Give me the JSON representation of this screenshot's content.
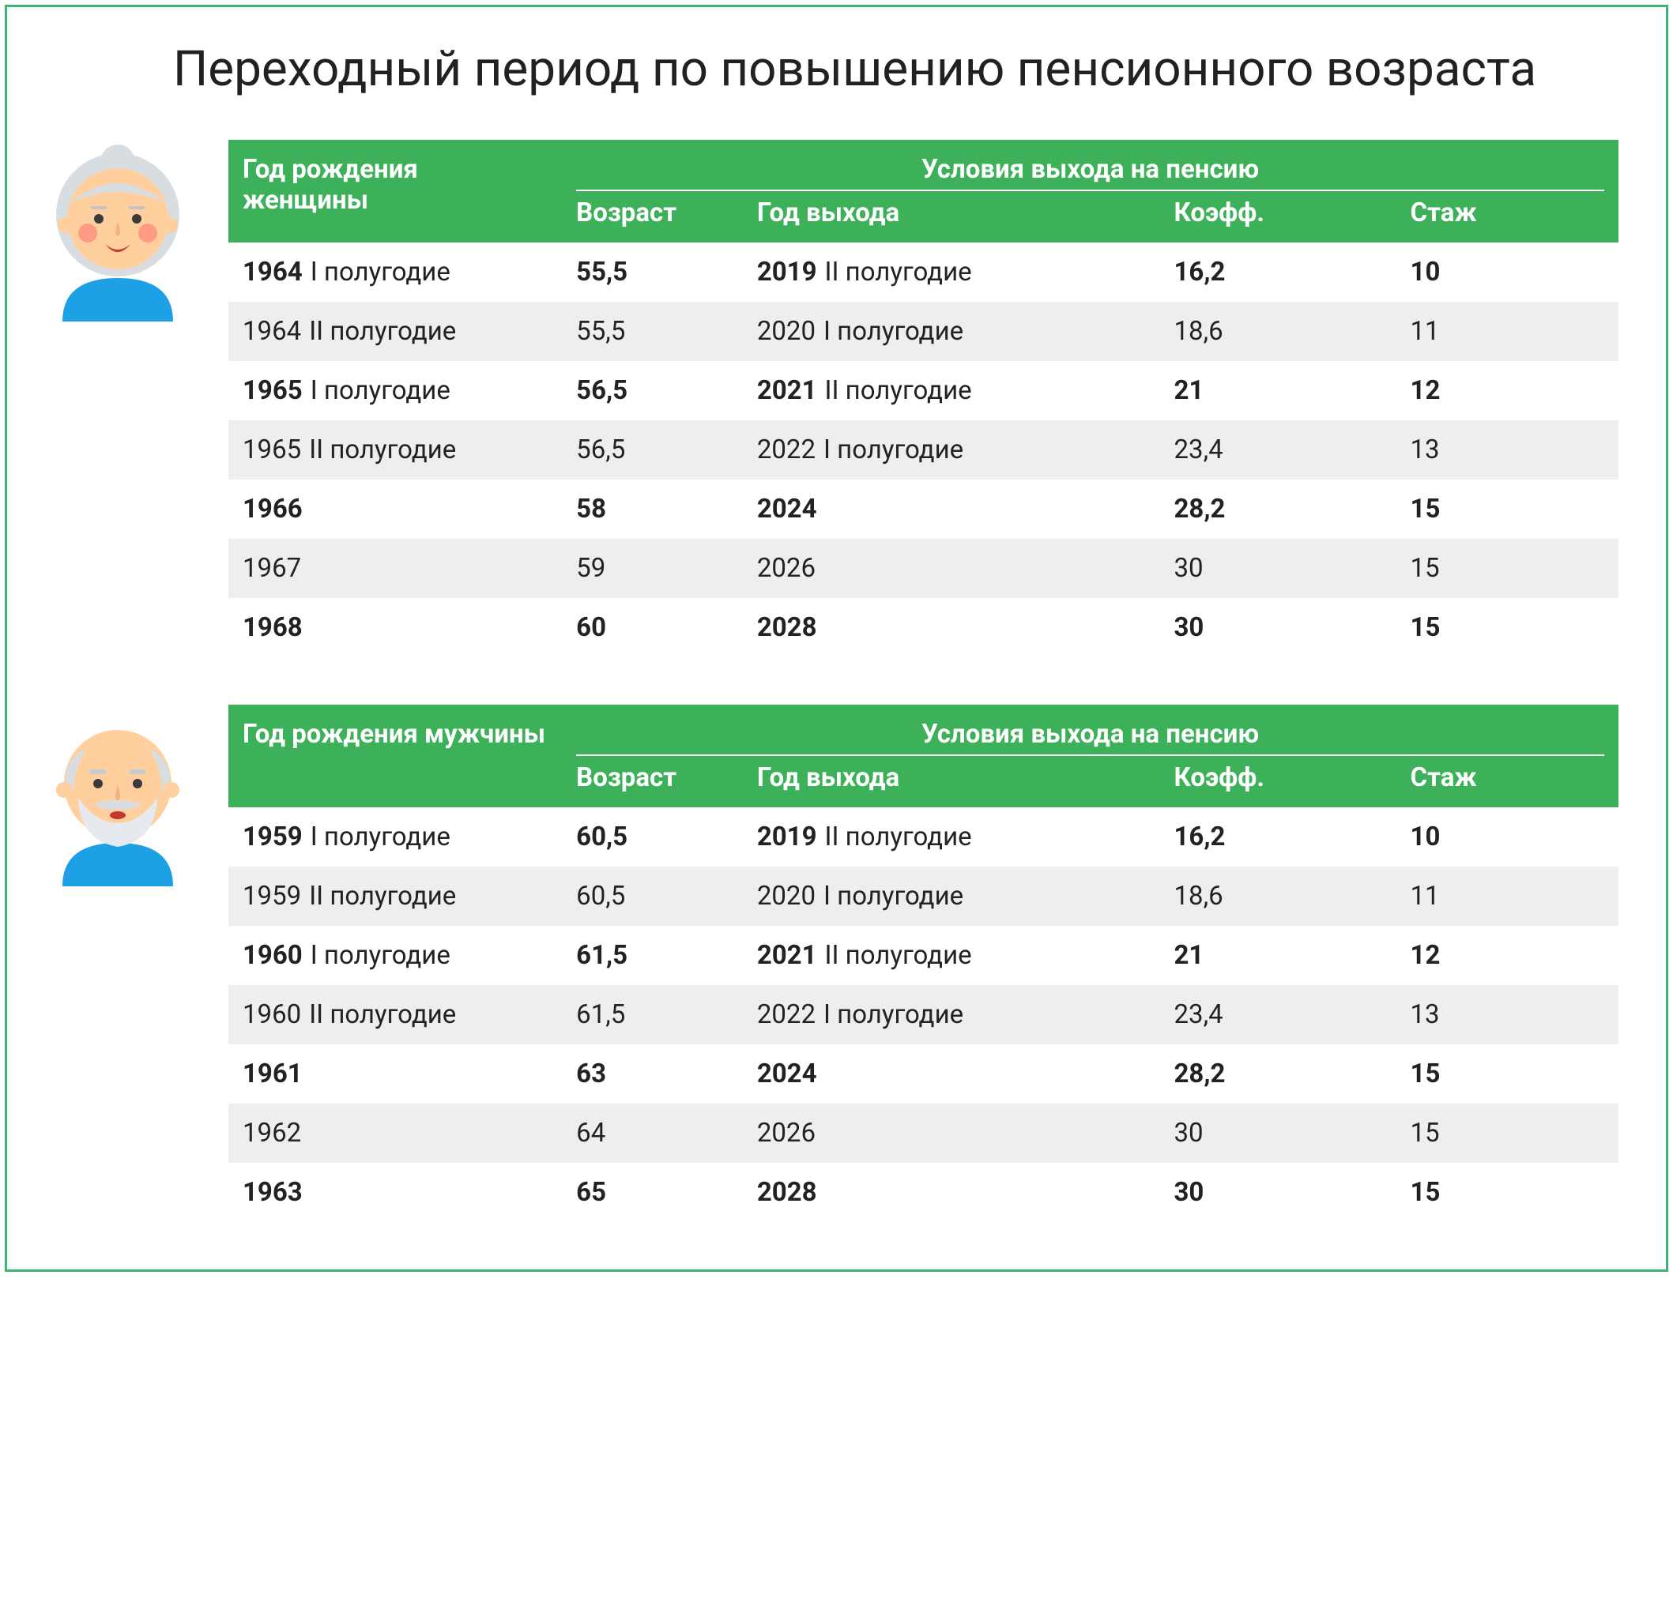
{
  "title": "Переходный период по повышению пенсионного возраста",
  "header_bg": "#3cb159",
  "header_fg": "#ffffff",
  "row_grey": "#eeeeee",
  "frame_border": "#3cb371",
  "columns": {
    "birth_women": "Год рождения женщины",
    "birth_men": "Год рождения мужчины",
    "conditions": "Условия выхода на пенсию",
    "age": "Возраст",
    "exit_year": "Год выхода",
    "coef": "Коэфф.",
    "stage": "Стаж"
  },
  "women_rows": [
    {
      "year": "1964",
      "half": "I полугодие",
      "age": "55,5",
      "exit_year": "2019",
      "exit_half": "II полугодие",
      "coef": "16,2",
      "stage": "10"
    },
    {
      "year": "1964",
      "half": "II полугодие",
      "age": "55,5",
      "exit_year": "2020",
      "exit_half": "I полугодие",
      "coef": "18,6",
      "stage": "11"
    },
    {
      "year": "1965",
      "half": "I полугодие",
      "age": "56,5",
      "exit_year": "2021",
      "exit_half": "II полугодие",
      "coef": "21",
      "stage": "12"
    },
    {
      "year": "1965",
      "half": "II полугодие",
      "age": "56,5",
      "exit_year": "2022",
      "exit_half": "I полугодие",
      "coef": "23,4",
      "stage": "13"
    },
    {
      "year": "1966",
      "half": "",
      "age": "58",
      "exit_year": "2024",
      "exit_half": "",
      "coef": "28,2",
      "stage": "15"
    },
    {
      "year": "1967",
      "half": "",
      "age": "59",
      "exit_year": "2026",
      "exit_half": "",
      "coef": "30",
      "stage": "15"
    },
    {
      "year": "1968",
      "half": "",
      "age": "60",
      "exit_year": "2028",
      "exit_half": "",
      "coef": "30",
      "stage": "15"
    }
  ],
  "men_rows": [
    {
      "year": "1959",
      "half": "I полугодие",
      "age": "60,5",
      "exit_year": "2019",
      "exit_half": "II полугодие",
      "coef": "16,2",
      "stage": "10"
    },
    {
      "year": "1959",
      "half": "II полугодие",
      "age": "60,5",
      "exit_year": "2020",
      "exit_half": "I полугодие",
      "coef": "18,6",
      "stage": "11"
    },
    {
      "year": "1960",
      "half": "I полугодие",
      "age": "61,5",
      "exit_year": "2021",
      "exit_half": "II полугодие",
      "coef": "21",
      "stage": "12"
    },
    {
      "year": "1960",
      "half": "II полугодие",
      "age": "61,5",
      "exit_year": "2022",
      "exit_half": "I полугодие",
      "coef": "23,4",
      "stage": "13"
    },
    {
      "year": "1961",
      "half": "",
      "age": "63",
      "exit_year": "2024",
      "exit_half": "",
      "coef": "28,2",
      "stage": "15"
    },
    {
      "year": "1962",
      "half": "",
      "age": "64",
      "exit_year": "2026",
      "exit_half": "",
      "coef": "30",
      "stage": "15"
    },
    {
      "year": "1963",
      "half": "",
      "age": "65",
      "exit_year": "2028",
      "exit_half": "",
      "coef": "30",
      "stage": "15"
    }
  ]
}
